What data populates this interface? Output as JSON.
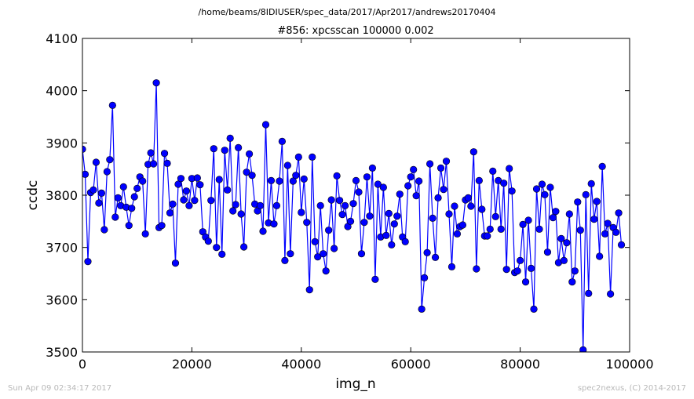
{
  "header": {
    "path": "/home/beams/8IDIUSER/spec_data/2017/Apr2017/andrews20170404"
  },
  "footer": {
    "timestamp": "Sun Apr 09 02:34:17 2017",
    "credit": "spec2nexus, (C) 2014-2017"
  },
  "colors": {
    "series": "#0000ff",
    "axes": "#000000",
    "footer": "#b8b8b8"
  },
  "chart_data": {
    "type": "line",
    "title": "#856: xpcsscan 100000 0.002",
    "xlabel": "img_n",
    "ylabel": "ccdc",
    "xlim": [
      0,
      100000
    ],
    "ylim": [
      3500,
      4100
    ],
    "xticks": [
      0,
      20000,
      40000,
      60000,
      80000,
      100000
    ],
    "yticks": [
      3500,
      3600,
      3700,
      3800,
      3900,
      4000,
      4100
    ],
    "grid": false,
    "marker": "circle",
    "x_start": 0,
    "x_step": 500,
    "y": [
      3888,
      3840,
      3673,
      3805,
      3810,
      3863,
      3785,
      3804,
      3734,
      3845,
      3868,
      3972,
      3758,
      3795,
      3780,
      3816,
      3777,
      3742,
      3775,
      3797,
      3813,
      3835,
      3827,
      3726,
      3859,
      3881,
      3860,
      4015,
      3738,
      3742,
      3880,
      3861,
      3766,
      3783,
      3670,
      3821,
      3832,
      3791,
      3808,
      3780,
      3832,
      3790,
      3833,
      3820,
      3730,
      3720,
      3712,
      3790,
      3889,
      3700,
      3830,
      3687,
      3886,
      3810,
      3909,
      3770,
      3782,
      3891,
      3764,
      3701,
      3844,
      3879,
      3838,
      3783,
      3770,
      3780,
      3731,
      3935,
      3747,
      3828,
      3745,
      3780,
      3827,
      3903,
      3675,
      3857,
      3688,
      3827,
      3838,
      3873,
      3767,
      3831,
      3748,
      3619,
      3873,
      3711,
      3682,
      3780,
      3688,
      3655,
      3733,
      3791,
      3698,
      3837,
      3790,
      3763,
      3780,
      3740,
      3750,
      3784,
      3828,
      3806,
      3688,
      3748,
      3835,
      3760,
      3852,
      3639,
      3821,
      3720,
      3815,
      3723,
      3765,
      3705,
      3745,
      3760,
      3802,
      3720,
      3711,
      3818,
      3835,
      3849,
      3799,
      3827,
      3582,
      3642,
      3690,
      3860,
      3756,
      3681,
      3795,
      3852,
      3811,
      3865,
      3764,
      3663,
      3779,
      3726,
      3740,
      3743,
      3791,
      3795,
      3779,
      3883,
      3659,
      3828,
      3773,
      3722,
      3722,
      3735,
      3846,
      3759,
      3828,
      3735,
      3823,
      3658,
      3851,
      3808,
      3652,
      3655,
      3675,
      3744,
      3634,
      3752,
      3660,
      3582,
      3812,
      3735,
      3821,
      3801,
      3691,
      3815,
      3757,
      3769,
      3671,
      3717,
      3675,
      3709,
      3764,
      3634,
      3655,
      3787,
      3733,
      3504,
      3801,
      3612,
      3822,
      3754,
      3788,
      3683,
      3855,
      3726,
      3746,
      3611,
      3738,
      3729,
      3766,
      3705
    ]
  }
}
